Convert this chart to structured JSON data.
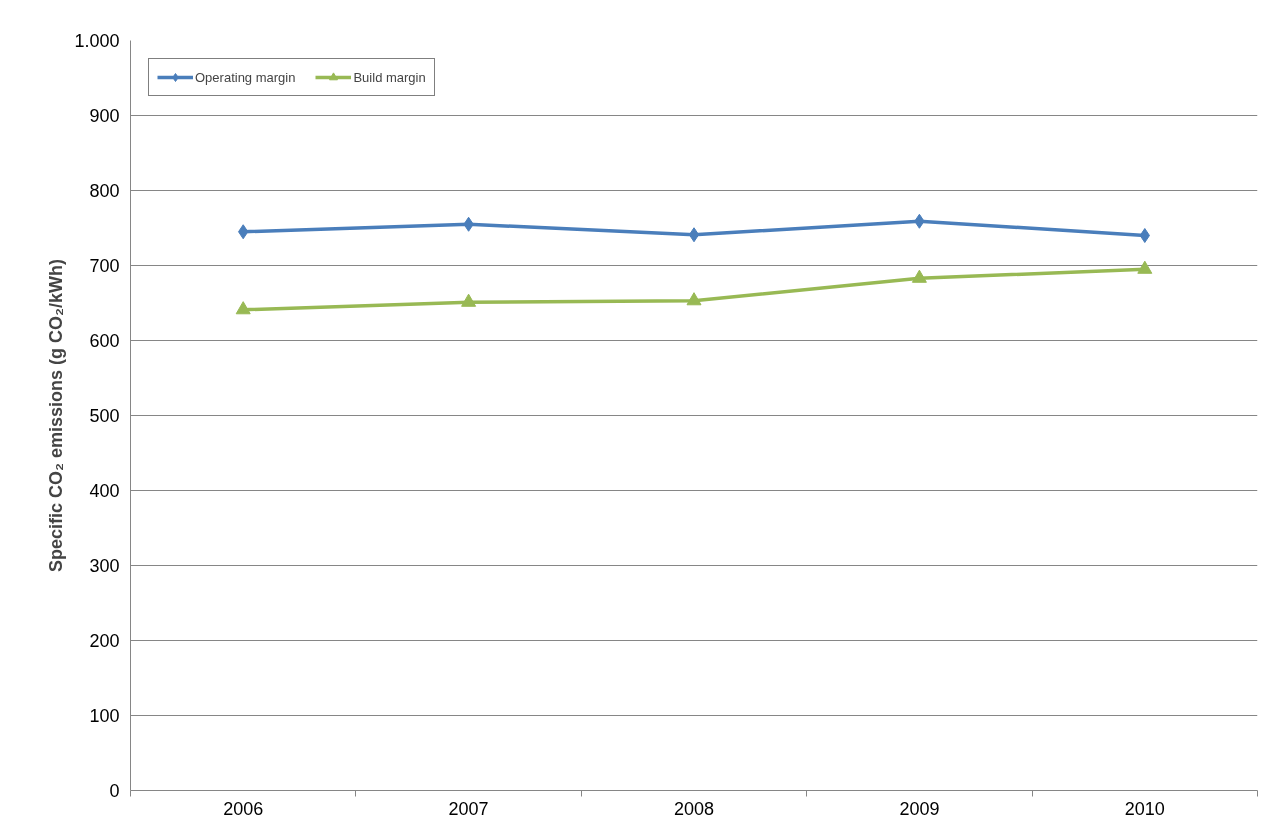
{
  "chart_data": {
    "type": "line",
    "ylabel": "Specific CO₂ emissions (g CO₂/kWh)",
    "categories": [
      "2006",
      "2007",
      "2008",
      "2009",
      "2010"
    ],
    "series": [
      {
        "name": "Operating margin",
        "color": "#4a7ebb",
        "marker": "diamond",
        "values": [
          745,
          755,
          741,
          759,
          740
        ]
      },
      {
        "name": "Build margin",
        "color": "#98b954",
        "marker": "triangle",
        "values": [
          641,
          651,
          653,
          683,
          695
        ]
      }
    ],
    "ylim": [
      0,
      1000
    ],
    "yticks": [
      0,
      100,
      200,
      300,
      400,
      500,
      600,
      700,
      800,
      900,
      {
        "value": 1000,
        "label": "1.000"
      }
    ],
    "grid": "y",
    "legend": "top left",
    "line_style": "solid"
  }
}
